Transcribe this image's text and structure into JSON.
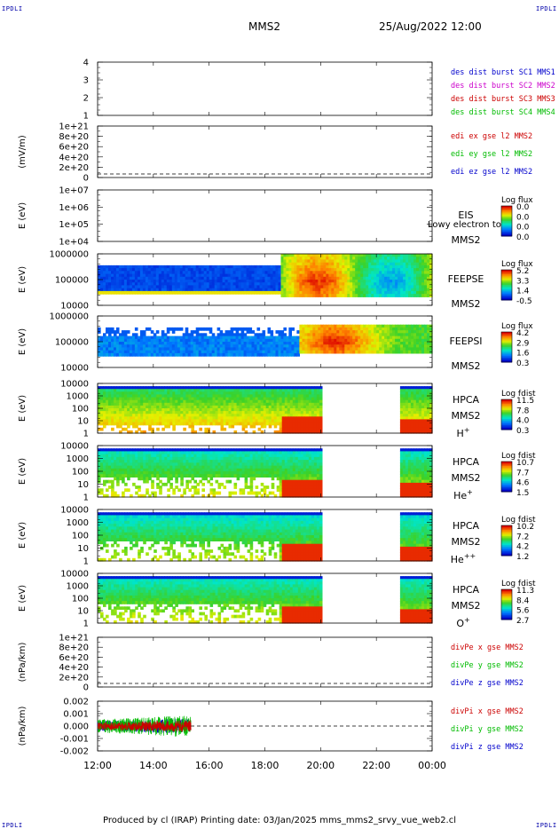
{
  "header": {
    "corner_label": "IPDLI",
    "spacecraft": "MMS2",
    "date_time": "25/Aug/2022 12:00"
  },
  "footer": {
    "text": "Produced by cl (IRAP)   Printing date: 03/Jan/2025   mms_mms2_srvy_vue_web2.cl"
  },
  "time_axis": {
    "start_hours": 12,
    "end_hours": 24,
    "tick_labels": [
      "12:00",
      "14:00",
      "16:00",
      "18:00",
      "20:00",
      "22:00",
      "00:00"
    ]
  },
  "chart_data": [
    {
      "type": "line",
      "id": "des_dist",
      "ylabel": "",
      "yticks": [
        "1",
        "2",
        "3",
        "4"
      ],
      "legend": [
        {
          "text": "des dist burst SC1 MMS1",
          "color": "#0000cc"
        },
        {
          "text": "des dist burst SC2 MMS2",
          "color": "#cc00cc"
        },
        {
          "text": "des dist burst SC3 MMS3",
          "color": "#cc0000"
        },
        {
          "text": "des dist burst SC4 MMS4",
          "color": "#00bb00"
        }
      ],
      "series": []
    },
    {
      "type": "line",
      "id": "edi_e",
      "ylabel": "(mV/m)",
      "yticks": [
        "0",
        "2e+20",
        "4e+20",
        "6e+20",
        "8e+20",
        "1e+21"
      ],
      "zero_line": true,
      "legend": [
        {
          "text": "edi ex gse l2 MMS2",
          "color": "#cc0000"
        },
        {
          "text": "edi ey gse l2 MMS2",
          "color": "#00bb00"
        },
        {
          "text": "edi ez gse l2 MMS2",
          "color": "#0000cc"
        }
      ],
      "series": []
    },
    {
      "type": "heatmap",
      "id": "eis",
      "ylabel": "E (eV)",
      "yticks": [
        "1e+04",
        "1e+05",
        "1e+06",
        "1e+07"
      ],
      "labels": [
        "EIS",
        "MMS2"
      ],
      "overlay_text": "Lowy electron to",
      "colorbar_title": "Log flux",
      "colorbar_ticks": [
        "0.0",
        "0.0",
        "0.0",
        "0.0"
      ],
      "coverage": []
    },
    {
      "type": "heatmap",
      "id": "feepse",
      "ylabel": "E (eV)",
      "yticks": [
        "10000",
        "100000",
        "1000000"
      ],
      "labels": [
        "FEEPSE",
        "MMS2"
      ],
      "colorbar_title": "Log flux",
      "colorbar_ticks": [
        "5.2",
        "3.3",
        "1.4",
        "-0.5"
      ],
      "coverage": [
        [
          12,
          24
        ]
      ]
    },
    {
      "type": "heatmap",
      "id": "feepsi",
      "ylabel": "E (eV)",
      "yticks": [
        "10000",
        "100000",
        "1000000"
      ],
      "labels": [
        "FEEPSI",
        "MMS2"
      ],
      "colorbar_title": "Log flux",
      "colorbar_ticks": [
        "4.2",
        "2.9",
        "1.6",
        "0.3"
      ],
      "coverage": [
        [
          12,
          24
        ]
      ]
    },
    {
      "type": "heatmap",
      "id": "hpca_h",
      "ylabel": "E (eV)",
      "yticks": [
        "1",
        "10",
        "100",
        "1000",
        "10000"
      ],
      "labels": [
        "HPCA",
        "MMS2",
        "H+"
      ],
      "colorbar_title": "Log fdist",
      "colorbar_ticks": [
        "11.5",
        "7.8",
        "4.0",
        "0.3"
      ],
      "coverage": [
        [
          12,
          20.05
        ],
        [
          22.85,
          24
        ]
      ]
    },
    {
      "type": "heatmap",
      "id": "hpca_he",
      "ylabel": "E (eV)",
      "yticks": [
        "1",
        "10",
        "100",
        "1000",
        "10000"
      ],
      "labels": [
        "HPCA",
        "MMS2",
        "He+"
      ],
      "colorbar_title": "Log fdist",
      "colorbar_ticks": [
        "10.7",
        "7.7",
        "4.6",
        "1.5"
      ],
      "coverage": [
        [
          12,
          20.05
        ],
        [
          22.85,
          24
        ]
      ]
    },
    {
      "type": "heatmap",
      "id": "hpca_hepp",
      "ylabel": "E (eV)",
      "yticks": [
        "1",
        "10",
        "100",
        "1000",
        "10000"
      ],
      "labels": [
        "HPCA",
        "MMS2",
        "He++"
      ],
      "colorbar_title": "Log fdist",
      "colorbar_ticks": [
        "10.2",
        "7.2",
        "4.2",
        "1.2"
      ],
      "coverage": [
        [
          12,
          20.05
        ],
        [
          22.85,
          24
        ]
      ]
    },
    {
      "type": "heatmap",
      "id": "hpca_o",
      "ylabel": "E (eV)",
      "yticks": [
        "1",
        "10",
        "100",
        "1000",
        "10000"
      ],
      "labels": [
        "HPCA",
        "MMS2",
        "O+"
      ],
      "colorbar_title": "Log fdist",
      "colorbar_ticks": [
        "11.3",
        "8.4",
        "5.6",
        "2.7"
      ],
      "coverage": [
        [
          12,
          20.05
        ],
        [
          22.85,
          24
        ]
      ]
    },
    {
      "type": "line",
      "id": "divpe",
      "ylabel": "(nPa/km)",
      "yticks": [
        "0",
        "2e+20",
        "4e+20",
        "6e+20",
        "8e+20",
        "1e+21"
      ],
      "zero_line": true,
      "legend": [
        {
          "text": "divPe x gse MMS2",
          "color": "#cc0000"
        },
        {
          "text": "divPe y gse MMS2",
          "color": "#00bb00"
        },
        {
          "text": "divPe z gse MMS2",
          "color": "#0000cc"
        }
      ],
      "series": []
    },
    {
      "type": "line",
      "id": "divpi",
      "ylabel": "(nPa/km)",
      "yticks": [
        "-0.002",
        "-0.001",
        "0.000",
        "0.001",
        "0.002"
      ],
      "ylim": [
        -0.0025,
        0.0025
      ],
      "zero_line": true,
      "legend": [
        {
          "text": "divPi x gse MMS2",
          "color": "#cc0000"
        },
        {
          "text": "divPi y gse MMS2",
          "color": "#00bb00"
        },
        {
          "text": "divPi z gse MMS2",
          "color": "#0000cc"
        }
      ],
      "series": [
        {
          "name": "divPi x gse MMS2",
          "color": "#cc0000",
          "x_range": [
            12.0,
            15.35
          ],
          "amplitude": 0.0006
        },
        {
          "name": "divPi y gse MMS2",
          "color": "#00bb00",
          "x_range": [
            12.0,
            15.35
          ],
          "amplitude": 0.0011
        },
        {
          "name": "divPi z gse MMS2",
          "color": "#0000cc",
          "x_range": [
            12.0,
            15.35
          ],
          "amplitude": 0.0008
        }
      ]
    }
  ]
}
